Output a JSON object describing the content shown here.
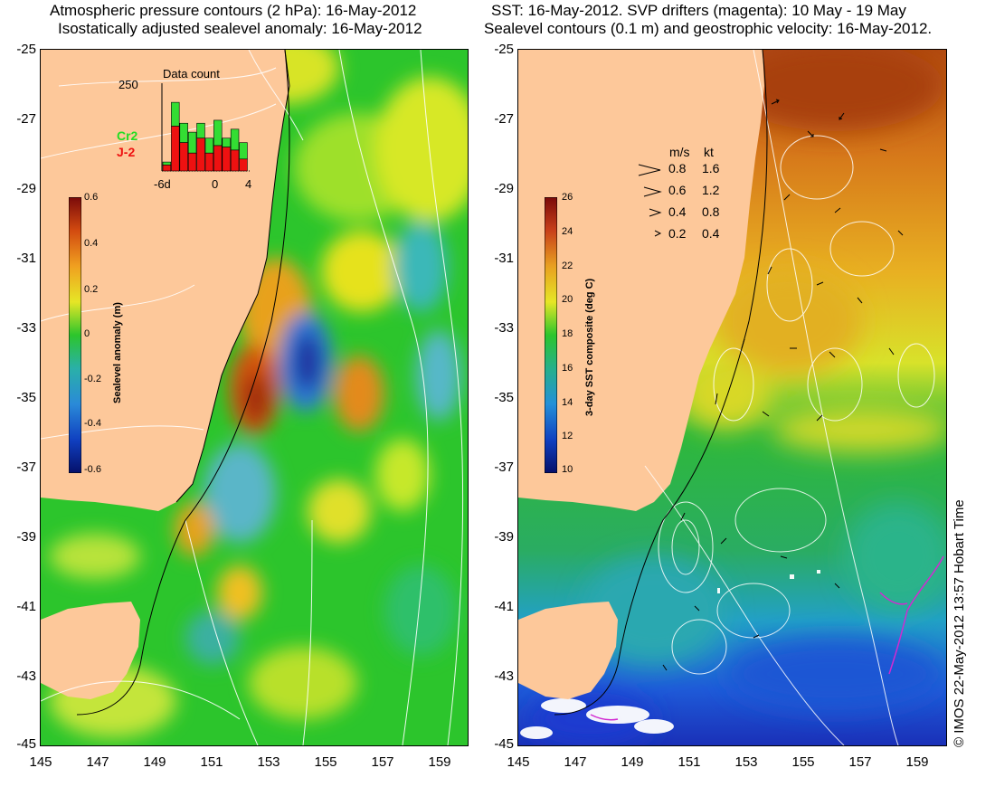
{
  "left_panel": {
    "title_line1": "Atmospheric pressure contours (2 hPa): 16-May-2012",
    "title_line2": "Isostatically adjusted sealevel anomaly: 16-May-2012",
    "colorbar": {
      "label": "Sealevel anomaly (m)",
      "ticks": [
        "0.6",
        "0.4",
        "0.2",
        "0",
        "-0.2",
        "-0.4",
        "-0.6"
      ]
    },
    "inset": {
      "title": "Data count",
      "ymax_label": "250",
      "x_ticks": [
        "-6d",
        "0",
        "4"
      ],
      "series": [
        {
          "name": "Cr2",
          "color": "#33dd33"
        },
        {
          "name": "J-2",
          "color": "#ee1111"
        }
      ],
      "bars_j2": [
        20,
        150,
        95,
        60,
        110,
        60,
        85,
        80,
        70,
        40
      ],
      "bars_cr2": [
        30,
        230,
        160,
        130,
        160,
        110,
        170,
        110,
        140,
        95
      ]
    }
  },
  "right_panel": {
    "title_line1": "SST: 16-May-2012. SVP drifters (magenta): 10 May - 19 May",
    "title_line2": "Sealevel contours (0.1 m) and geostrophic velocity: 16-May-2012.",
    "colorbar": {
      "label": "3-day SST composite (deg C)",
      "ticks": [
        "26",
        "24",
        "22",
        "20",
        "18",
        "16",
        "14",
        "12",
        "10"
      ]
    },
    "velocity_legend": {
      "header_ms": "m/s",
      "header_kt": "kt",
      "rows": [
        {
          "ms": "0.8",
          "kt": "1.6"
        },
        {
          "ms": "0.6",
          "kt": "1.2"
        },
        {
          "ms": "0.4",
          "kt": "0.8"
        },
        {
          "ms": "0.2",
          "kt": "0.4"
        }
      ]
    }
  },
  "axes": {
    "y_ticks": [
      "-25",
      "-27",
      "-29",
      "-31",
      "-33",
      "-35",
      "-37",
      "-39",
      "-41",
      "-43",
      "-45"
    ],
    "x_ticks": [
      "145",
      "147",
      "149",
      "151",
      "153",
      "155",
      "157",
      "159"
    ]
  },
  "copyright": "© IMOS 22-May-2012 13:57 Hobart Time",
  "colors": {
    "land": "#fdc89a",
    "ocean_green": "#2cc52c"
  }
}
